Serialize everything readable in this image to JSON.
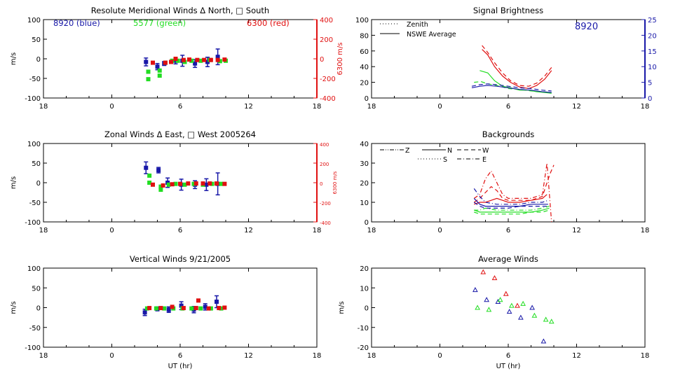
{
  "colors": {
    "red": "#e01010",
    "green": "#22dd22",
    "blue": "#1818a8",
    "axis": "#000000",
    "right_axis_red": "#e01010",
    "right_axis_blue": "#1818a8"
  },
  "x_axis": {
    "tick_labels": [
      "18",
      "0",
      "6",
      "12",
      "18"
    ],
    "xlabel": "UT (hr)"
  },
  "chart_data": [
    {
      "id": "meridional",
      "type": "scatter",
      "title": "Resolute Meridional Winds Δ North, □ South",
      "ylabel": "m/s",
      "ylim": [
        -100,
        100
      ],
      "yticks": [
        "100",
        "50",
        "0",
        "-50",
        "-100"
      ],
      "right_axis": {
        "label": "6300 m/s",
        "ticks": [
          "400",
          "200",
          "0",
          "-200",
          "-400"
        ],
        "range": [
          -400,
          400
        ]
      },
      "annotations": [
        {
          "text": "8920 (blue)",
          "color": "blue"
        },
        {
          "text": "5577 (green)",
          "color": "green"
        },
        {
          "text": "6300 (red)",
          "color": "red"
        }
      ],
      "series": [
        {
          "color": "blue",
          "points": [
            [
              3.0,
              -8,
              10
            ],
            [
              4.0,
              -20,
              8
            ],
            [
              4.6,
              -12,
              5
            ],
            [
              5.6,
              -5,
              8
            ],
            [
              6.2,
              -5,
              14
            ],
            [
              7.3,
              -12,
              10
            ],
            [
              8.4,
              -8,
              12
            ],
            [
              9.3,
              5,
              20
            ]
          ]
        },
        {
          "color": "green",
          "points": [
            [
              3.2,
              -33
            ],
            [
              3.2,
              -52
            ],
            [
              4.2,
              -30
            ],
            [
              4.2,
              -43
            ],
            [
              4.7,
              -10
            ],
            [
              5.3,
              -5
            ],
            [
              5.8,
              -5
            ],
            [
              6.4,
              -8
            ],
            [
              7.0,
              -5
            ],
            [
              7.8,
              -5
            ],
            [
              8.6,
              -3
            ],
            [
              9.5,
              -6
            ],
            [
              10.0,
              -5
            ]
          ]
        },
        {
          "color": "red",
          "points": [
            [
              3.6,
              -10
            ],
            [
              4.7,
              -10
            ],
            [
              5.2,
              -8
            ],
            [
              5.6,
              0
            ],
            [
              6.3,
              -3
            ],
            [
              6.8,
              -2
            ],
            [
              7.5,
              -3
            ],
            [
              8.1,
              -3
            ],
            [
              8.7,
              -3
            ],
            [
              9.3,
              -3
            ],
            [
              9.9,
              -2
            ]
          ]
        }
      ]
    },
    {
      "id": "zonal",
      "type": "scatter",
      "title": "Zonal Winds Δ East, □ West 2005264",
      "ylabel": "m/s",
      "ylim": [
        -100,
        100
      ],
      "yticks": [
        "100",
        "50",
        "0",
        "-50",
        "-100"
      ],
      "right_axis": {
        "label": "6300 m/s",
        "ticks": [
          "400",
          "200",
          "0",
          "-200",
          "-400"
        ],
        "range": [
          -400,
          400
        ]
      },
      "series": [
        {
          "color": "blue",
          "points": [
            [
              3.0,
              38,
              15
            ],
            [
              4.1,
              32,
              7
            ],
            [
              4.9,
              0,
              12
            ],
            [
              6.1,
              -5,
              14
            ],
            [
              7.3,
              -5,
              10
            ],
            [
              8.3,
              -5,
              15
            ],
            [
              9.3,
              -3,
              28
            ]
          ]
        },
        {
          "color": "green",
          "points": [
            [
              3.3,
              18
            ],
            [
              3.3,
              0
            ],
            [
              4.3,
              -10
            ],
            [
              4.3,
              -18
            ],
            [
              5.0,
              -5
            ],
            [
              5.6,
              -3
            ],
            [
              6.4,
              -5
            ],
            [
              7.2,
              -3
            ],
            [
              8.0,
              -5
            ],
            [
              8.8,
              -3
            ],
            [
              9.6,
              -3
            ]
          ]
        },
        {
          "color": "red",
          "points": [
            [
              3.6,
              -5
            ],
            [
              4.5,
              -7
            ],
            [
              5.3,
              -4
            ],
            [
              6.0,
              -3
            ],
            [
              6.7,
              -2
            ],
            [
              7.4,
              -2
            ],
            [
              8.0,
              -2
            ],
            [
              8.6,
              -2
            ],
            [
              9.2,
              -2
            ],
            [
              9.9,
              -3
            ]
          ]
        }
      ]
    },
    {
      "id": "vertical",
      "type": "scatter",
      "title": "Vertical Winds 9/21/2005",
      "xlabel": "UT (hr)",
      "ylabel": "m/s",
      "ylim": [
        -100,
        100
      ],
      "yticks": [
        "100",
        "50",
        "0",
        "-50",
        "-100"
      ],
      "series": [
        {
          "color": "blue",
          "points": [
            [
              2.9,
              -12,
              8
            ],
            [
              4.0,
              -3,
              5
            ],
            [
              5.0,
              -5,
              7
            ],
            [
              6.1,
              5,
              10
            ],
            [
              7.2,
              -5,
              8
            ],
            [
              8.2,
              2,
              8
            ],
            [
              9.2,
              15,
              15
            ]
          ]
        },
        {
          "color": "green",
          "points": [
            [
              3.1,
              -2
            ],
            [
              3.9,
              -2
            ],
            [
              4.6,
              -2
            ],
            [
              5.4,
              -2
            ],
            [
              6.2,
              -2
            ],
            [
              7.0,
              -2
            ],
            [
              7.8,
              -2
            ],
            [
              8.7,
              -2
            ],
            [
              9.6,
              -2
            ]
          ]
        },
        {
          "color": "red",
          "points": [
            [
              3.3,
              -1
            ],
            [
              4.3,
              -1
            ],
            [
              5.3,
              2
            ],
            [
              6.3,
              -1
            ],
            [
              7.4,
              -1
            ],
            [
              7.6,
              18
            ],
            [
              8.5,
              -2
            ],
            [
              9.4,
              -1
            ],
            [
              9.9,
              0
            ]
          ]
        }
      ]
    },
    {
      "id": "brightness",
      "type": "line",
      "title": "Signal Brightness",
      "ylim": [
        0,
        100
      ],
      "yticks": [
        "100",
        "80",
        "60",
        "40",
        "20",
        "0"
      ],
      "right_axis": {
        "label": "",
        "ticks": [
          "25",
          "20",
          "15",
          "10",
          "5",
          "0"
        ],
        "range": [
          0,
          25
        ],
        "color": "blue"
      },
      "annotations": [
        {
          "text": "8920",
          "color": "blue"
        }
      ],
      "legend": {
        "position": "top-left",
        "items": [
          {
            "label": "Zenith",
            "style": "dotted"
          },
          {
            "label": "NSWE Average",
            "style": "solid"
          }
        ]
      },
      "series": [
        {
          "color": "red",
          "style": "solid",
          "x": [
            3.7,
            4.2,
            4.8,
            5.5,
            6.2,
            7.0,
            7.8,
            8.5,
            9.2,
            9.8
          ],
          "y": [
            62,
            55,
            40,
            28,
            20,
            14,
            12,
            16,
            24,
            35
          ]
        },
        {
          "color": "red",
          "style": "dashed",
          "x": [
            3.7,
            4.2,
            4.8,
            5.5,
            6.2,
            7.0,
            7.8,
            8.5,
            9.2,
            9.8
          ],
          "y": [
            67,
            58,
            45,
            32,
            22,
            16,
            15,
            19,
            28,
            39
          ]
        },
        {
          "color": "green",
          "style": "solid",
          "x": [
            3.5,
            4.2,
            4.8,
            5.5,
            6.2,
            7.0,
            7.8,
            8.5,
            9.2,
            9.8
          ],
          "y": [
            35,
            32,
            22,
            15,
            13,
            10,
            10,
            8,
            7,
            6
          ]
        },
        {
          "color": "green",
          "style": "dashed",
          "x": [
            3.0,
            3.6,
            4.2,
            5.0,
            6.0,
            7.0,
            8.0,
            9.0,
            9.8
          ],
          "y": [
            20,
            21,
            18,
            16,
            12,
            11,
            9,
            8,
            7
          ]
        },
        {
          "color": "blue",
          "style": "solid",
          "x": [
            2.8,
            3.5,
            4.2,
            5.0,
            6.0,
            7.0,
            8.0,
            9.0,
            9.8
          ],
          "y": [
            13,
            15,
            16,
            15,
            13,
            11,
            10,
            8,
            7
          ]
        },
        {
          "color": "blue",
          "style": "dashed",
          "x": [
            2.8,
            3.5,
            4.2,
            5.0,
            6.0,
            7.0,
            8.0,
            9.0,
            9.8
          ],
          "y": [
            15,
            17,
            18,
            17,
            15,
            13,
            12,
            10,
            9
          ]
        }
      ]
    },
    {
      "id": "backgrounds",
      "type": "line",
      "title": "Backgrounds",
      "ylim": [
        0,
        40
      ],
      "yticks": [
        "40",
        "30",
        "20",
        "10",
        "0"
      ],
      "legend": {
        "position": "top-left",
        "items": [
          {
            "label": "Z",
            "style": "dash-dot-dot"
          },
          {
            "label": "N",
            "style": "solid"
          },
          {
            "label": "W",
            "style": "dashed"
          },
          {
            "label": "S",
            "style": "dotted"
          },
          {
            "label": "E",
            "style": "dash-dot"
          }
        ]
      },
      "series": [
        {
          "color": "red",
          "style": "dash-dot",
          "x": [
            3.0,
            3.5,
            4.0,
            4.5,
            5.0,
            5.5,
            6.0,
            7.0,
            8.0,
            9.0,
            9.4,
            9.6,
            9.8
          ],
          "y": [
            12,
            14,
            22,
            26,
            20,
            14,
            12,
            12,
            12,
            14,
            30,
            15,
            0
          ]
        },
        {
          "color": "red",
          "style": "dashed",
          "x": [
            3.0,
            3.5,
            4.0,
            4.5,
            5.0,
            5.5,
            6.0,
            7.0,
            8.0,
            9.0,
            9.4,
            9.7,
            10.0
          ],
          "y": [
            10,
            12,
            15,
            18,
            16,
            12,
            11,
            11,
            11,
            13,
            20,
            25,
            29
          ]
        },
        {
          "color": "red",
          "style": "solid",
          "x": [
            3.0,
            3.5,
            4.0,
            4.5,
            5.0,
            5.5,
            6.0,
            7.0,
            8.0,
            9.0,
            9.4
          ],
          "y": [
            9,
            10,
            10,
            11,
            12,
            11,
            10,
            10,
            11,
            12,
            14
          ]
        },
        {
          "color": "blue",
          "style": "dash-dot",
          "x": [
            3.0,
            3.5,
            4.0,
            5.0,
            6.0,
            7.0,
            8.0,
            9.0,
            9.5
          ],
          "y": [
            17,
            13,
            10,
            9,
            9,
            9,
            10,
            10,
            11
          ]
        },
        {
          "color": "blue",
          "style": "solid",
          "x": [
            3.0,
            3.5,
            4.0,
            5.0,
            6.0,
            7.0,
            8.0,
            9.0,
            9.5
          ],
          "y": [
            12,
            9,
            8,
            8,
            8,
            8,
            9,
            9,
            9
          ]
        },
        {
          "color": "blue",
          "style": "dashed",
          "x": [
            3.0,
            3.5,
            4.0,
            5.0,
            6.0,
            7.0,
            8.0,
            9.0,
            9.5
          ],
          "y": [
            10,
            8,
            7,
            7,
            7,
            8,
            8,
            8,
            8
          ]
        },
        {
          "color": "green",
          "style": "solid",
          "x": [
            3.0,
            3.5,
            4.0,
            5.0,
            6.0,
            7.0,
            8.0,
            9.0,
            9.6
          ],
          "y": [
            6,
            5,
            5,
            5,
            5,
            5,
            5,
            6,
            7
          ]
        },
        {
          "color": "green",
          "style": "dashed",
          "x": [
            3.0,
            3.5,
            4.0,
            5.0,
            6.0,
            7.0,
            8.0,
            9.0,
            9.6
          ],
          "y": [
            5,
            4,
            4,
            4,
            4,
            4,
            5,
            5,
            6
          ]
        },
        {
          "color": "green",
          "style": "dash-dot",
          "x": [
            3.0,
            3.5,
            4.0,
            5.0,
            6.0,
            7.0,
            8.0,
            9.0,
            9.6
          ],
          "y": [
            6,
            6,
            7,
            6,
            6,
            6,
            6,
            7,
            8
          ]
        }
      ]
    },
    {
      "id": "average",
      "type": "scatter",
      "title": "Average Winds",
      "xlabel": "UT (hr)",
      "ylabel": "m/s",
      "ylim": [
        -20,
        20
      ],
      "yticks": [
        "20",
        "10",
        "0",
        "-10",
        "-20"
      ],
      "series": [
        {
          "color": "red",
          "marker": "triangle",
          "points": [
            [
              3.8,
              18
            ],
            [
              4.8,
              15
            ],
            [
              5.8,
              7
            ],
            [
              6.8,
              1
            ]
          ]
        },
        {
          "color": "blue",
          "marker": "triangle",
          "points": [
            [
              3.1,
              9
            ],
            [
              4.1,
              4
            ],
            [
              5.1,
              3
            ],
            [
              6.1,
              -2
            ],
            [
              7.1,
              -5
            ],
            [
              8.1,
              0
            ],
            [
              9.1,
              -17
            ]
          ]
        },
        {
          "color": "green",
          "marker": "triangle",
          "points": [
            [
              3.3,
              0
            ],
            [
              4.3,
              -1
            ],
            [
              5.3,
              4
            ],
            [
              6.3,
              1
            ],
            [
              7.3,
              2
            ],
            [
              8.3,
              -4
            ],
            [
              9.3,
              -6
            ],
            [
              9.8,
              -7
            ]
          ]
        }
      ]
    }
  ]
}
